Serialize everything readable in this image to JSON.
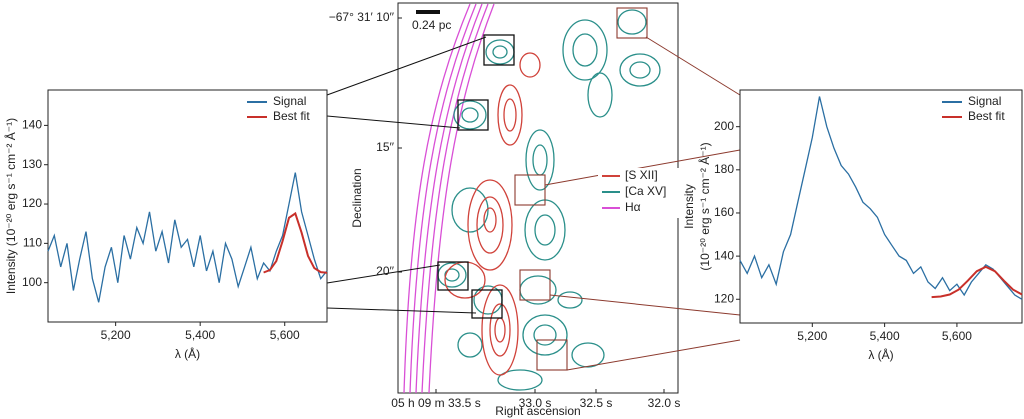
{
  "chart_data": [
    {
      "type": "line",
      "xlabel": "λ (Å)",
      "ylabel": "Intensity (10⁻²⁰ erg s⁻¹ cm⁻² Å⁻¹)",
      "xlim": [
        5040,
        5700
      ],
      "ylim": [
        90,
        149
      ],
      "xticks": [
        {
          "value": 5200,
          "label": "5,200"
        },
        {
          "value": 5400,
          "label": "5,400"
        },
        {
          "value": 5600,
          "label": "5,600"
        }
      ],
      "yticks": [
        100,
        110,
        120,
        130,
        140
      ],
      "legend": "upper right",
      "series": [
        {
          "name": "Signal",
          "color": "#2b6fa3",
          "x": [
            5040,
            5055,
            5070,
            5085,
            5100,
            5115,
            5130,
            5145,
            5160,
            5175,
            5190,
            5205,
            5220,
            5235,
            5250,
            5265,
            5280,
            5295,
            5310,
            5325,
            5340,
            5355,
            5370,
            5385,
            5400,
            5415,
            5430,
            5445,
            5460,
            5475,
            5490,
            5505,
            5520,
            5535,
            5550,
            5565,
            5580,
            5595,
            5610,
            5625,
            5640,
            5655,
            5670,
            5685,
            5700
          ],
          "values": [
            108,
            112,
            104,
            110,
            98,
            106,
            113,
            101,
            95,
            104,
            109,
            100,
            112,
            106,
            114,
            110,
            118,
            108,
            113,
            105,
            116,
            109,
            111,
            104,
            112,
            103,
            108,
            100,
            110,
            106,
            99,
            104,
            109,
            101,
            105,
            103,
            108,
            112,
            120,
            128,
            118,
            112,
            106,
            101,
            103
          ]
        },
        {
          "name": "Best fit",
          "color": "#c8302a",
          "x": [
            5550,
            5565,
            5580,
            5595,
            5610,
            5625,
            5640,
            5655,
            5670,
            5685,
            5700
          ],
          "values": [
            102.6,
            103.2,
            105.5,
            110.6,
            116.5,
            117.6,
            112.7,
            106.8,
            103.7,
            102.7,
            102.5
          ]
        }
      ]
    },
    {
      "type": "contour",
      "xlabel": "Right ascension",
      "ylabel": "Declination",
      "xticks": [
        "05 h 09 m 33.5 s",
        "33.0 s",
        "32.5 s",
        "32.0 s"
      ],
      "yticks": [
        "−67° 31′ 10′′",
        "15′′",
        "20′′"
      ],
      "scale_bar": "0.24 pc",
      "series": [
        {
          "name": "[S XII]",
          "color": "#d0423a"
        },
        {
          "name": "[Ca XV]",
          "color": "#2a8f8a"
        },
        {
          "name": "Hα",
          "color": "#d94fd6"
        }
      ]
    },
    {
      "type": "line",
      "xlabel": "λ (Å)",
      "ylabel": [
        "Intensity",
        "(10⁻²⁰ erg s⁻¹ cm⁻² Å⁻¹)"
      ],
      "xlim": [
        5000,
        5780
      ],
      "ylim": [
        109,
        217
      ],
      "xticks": [
        {
          "value": 5200,
          "label": "5,200"
        },
        {
          "value": 5400,
          "label": "5,400"
        },
        {
          "value": 5600,
          "label": "5,600"
        }
      ],
      "yticks": [
        120,
        140,
        160,
        180,
        200
      ],
      "legend": "upper right",
      "series": [
        {
          "name": "Signal",
          "color": "#2b6fa3",
          "x": [
            5000,
            5020,
            5040,
            5060,
            5080,
            5100,
            5120,
            5140,
            5160,
            5180,
            5200,
            5220,
            5240,
            5260,
            5280,
            5300,
            5320,
            5340,
            5360,
            5380,
            5400,
            5420,
            5440,
            5460,
            5480,
            5500,
            5520,
            5540,
            5560,
            5580,
            5600,
            5620,
            5640,
            5660,
            5680,
            5700,
            5720,
            5740,
            5760,
            5780
          ],
          "values": [
            138,
            132,
            140,
            130,
            136,
            127,
            142,
            150,
            165,
            180,
            195,
            214,
            200,
            190,
            182,
            178,
            172,
            165,
            162,
            158,
            150,
            145,
            140,
            138,
            132,
            135,
            128,
            125,
            130,
            124,
            127,
            122,
            128,
            132,
            136,
            134,
            130,
            126,
            122,
            120
          ]
        },
        {
          "name": "Best fit",
          "color": "#c8302a",
          "x": [
            5530,
            5555,
            5580,
            5605,
            5630,
            5655,
            5680,
            5705,
            5730,
            5755,
            5780
          ],
          "values": [
            121.0,
            121.3,
            122.2,
            124.5,
            128.6,
            133.0,
            135,
            133.0,
            128.6,
            124.5,
            122.2
          ]
        }
      ]
    }
  ]
}
